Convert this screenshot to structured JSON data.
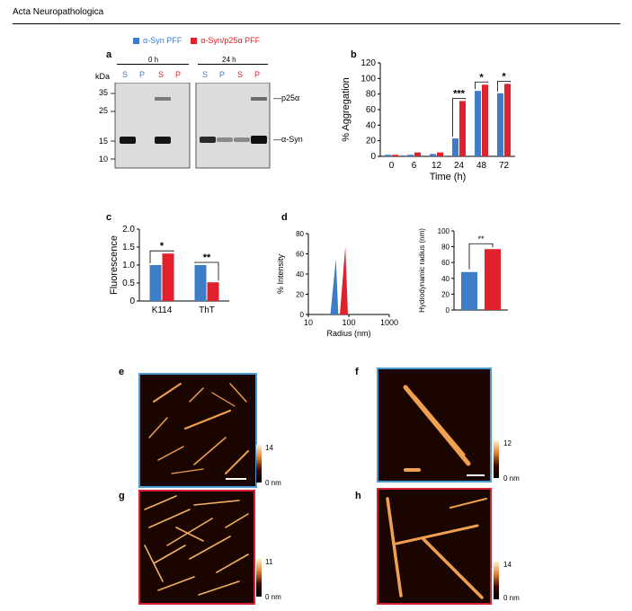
{
  "header": {
    "journal": "Acta Neuropathologica"
  },
  "colors": {
    "blue": "#3d7dc8",
    "red": "#e0202a",
    "afm_blue_frame": "#4a9bd8",
    "afm_red_frame": "#d82030"
  },
  "legend": {
    "syn": "α-Syn PFF",
    "p25": "α-Syn/p25α PFF"
  },
  "panel_a": {
    "label": "a",
    "time0": "0 h",
    "time24": "24 h",
    "lanes": [
      "S",
      "P",
      "S",
      "P"
    ],
    "kda": "kDa",
    "markers": [
      "35",
      "25",
      "15",
      "10"
    ],
    "band_p25": "p25α",
    "band_syn": "α-Syn"
  },
  "panel_b": {
    "label": "b"
  },
  "panel_c": {
    "label": "c"
  },
  "panel_d": {
    "label": "d"
  },
  "panel_e": {
    "label": "e",
    "scale_max": "14",
    "scale_min": "0 nm"
  },
  "panel_f": {
    "label": "f",
    "scale_max": "12",
    "scale_min": "0 nm"
  },
  "panel_g": {
    "label": "g",
    "scale_max": "11",
    "scale_min": "0 nm"
  },
  "panel_h": {
    "label": "h",
    "scale_max": "14",
    "scale_min": "0 nm"
  },
  "chart_data": [
    {
      "id": "b",
      "type": "bar",
      "xlabel": "Time (h)",
      "ylabel": "% Aggregation",
      "categories": [
        "0",
        "6",
        "12",
        "24",
        "48",
        "72"
      ],
      "ylim": [
        0,
        120
      ],
      "yticks": [
        "0",
        "20",
        "40",
        "60",
        "80",
        "100",
        "120"
      ],
      "series": [
        {
          "name": "α-Syn PFF",
          "values": [
            2,
            2,
            3,
            23,
            84,
            81
          ]
        },
        {
          "name": "α-Syn/p25α PFF",
          "values": [
            2,
            5,
            5,
            71,
            92,
            93
          ]
        }
      ],
      "significance": [
        "",
        "",
        "",
        "***",
        "*",
        "*"
      ]
    },
    {
      "id": "c",
      "type": "bar",
      "ylabel": "Fluorescence",
      "categories": [
        "K114",
        "ThT"
      ],
      "ylim": [
        0,
        2.0
      ],
      "yticks": [
        "0",
        "0.5",
        "1.0",
        "1.5",
        "2.0"
      ],
      "series": [
        {
          "name": "α-Syn PFF",
          "values": [
            1.0,
            1.0
          ]
        },
        {
          "name": "α-Syn/p25α PFF",
          "values": [
            1.32,
            0.52
          ]
        }
      ],
      "significance": [
        "*",
        "**"
      ]
    },
    {
      "id": "d1",
      "type": "area",
      "xlabel": "Radius (nm)",
      "ylabel": "% Intensity",
      "xscale": "log",
      "xlim": [
        10,
        1000
      ],
      "xticks": [
        "10",
        "100",
        "1000"
      ],
      "ylim": [
        0,
        80
      ],
      "yticks": [
        "0",
        "20",
        "40",
        "60",
        "80"
      ],
      "series": [
        {
          "name": "α-Syn PFF",
          "peak_x": 48,
          "peak_y": 55,
          "x_range": [
            35,
            55
          ]
        },
        {
          "name": "α-Syn/p25α PFF",
          "peak_x": 82,
          "peak_y": 67,
          "x_range": [
            60,
            95
          ]
        }
      ]
    },
    {
      "id": "d2",
      "type": "bar",
      "ylabel": "Hydrodynamic radius (nm)",
      "categories": [
        "α-Syn PFF",
        "α-Syn/p25α PFF"
      ],
      "ylim": [
        0,
        100
      ],
      "yticks": [
        "0",
        "20",
        "40",
        "60",
        "80",
        "100"
      ],
      "values": [
        48,
        77
      ],
      "significance": "**"
    }
  ]
}
